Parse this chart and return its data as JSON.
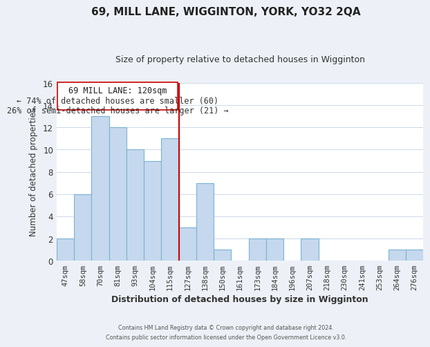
{
  "title": "69, MILL LANE, WIGGINTON, YORK, YO32 2QA",
  "subtitle": "Size of property relative to detached houses in Wigginton",
  "xlabel": "Distribution of detached houses by size in Wigginton",
  "ylabel": "Number of detached properties",
  "bar_labels": [
    "47sqm",
    "58sqm",
    "70sqm",
    "81sqm",
    "93sqm",
    "104sqm",
    "115sqm",
    "127sqm",
    "138sqm",
    "150sqm",
    "161sqm",
    "173sqm",
    "184sqm",
    "196sqm",
    "207sqm",
    "218sqm",
    "230sqm",
    "241sqm",
    "253sqm",
    "264sqm",
    "276sqm"
  ],
  "bar_values": [
    2,
    6,
    13,
    12,
    10,
    9,
    11,
    3,
    7,
    1,
    0,
    2,
    2,
    0,
    2,
    0,
    0,
    0,
    0,
    1,
    1
  ],
  "bar_color": "#c5d8ed",
  "bar_edge_color": "#7ab3d4",
  "subject_line_color": "#cc0000",
  "ylim": [
    0,
    16
  ],
  "yticks": [
    0,
    2,
    4,
    6,
    8,
    10,
    12,
    14,
    16
  ],
  "annotation_title": "69 MILL LANE: 120sqm",
  "annotation_line1": "← 74% of detached houses are smaller (60)",
  "annotation_line2": "26% of semi-detached houses are larger (21) →",
  "annotation_box_color": "#ffffff",
  "annotation_box_edge": "#cc0000",
  "footer_line1": "Contains HM Land Registry data © Crown copyright and database right 2024.",
  "footer_line2": "Contains public sector information licensed under the Open Government Licence v3.0.",
  "background_color": "#edf1f7",
  "plot_background_color": "#ffffff",
  "grid_color": "#ccd8e8"
}
